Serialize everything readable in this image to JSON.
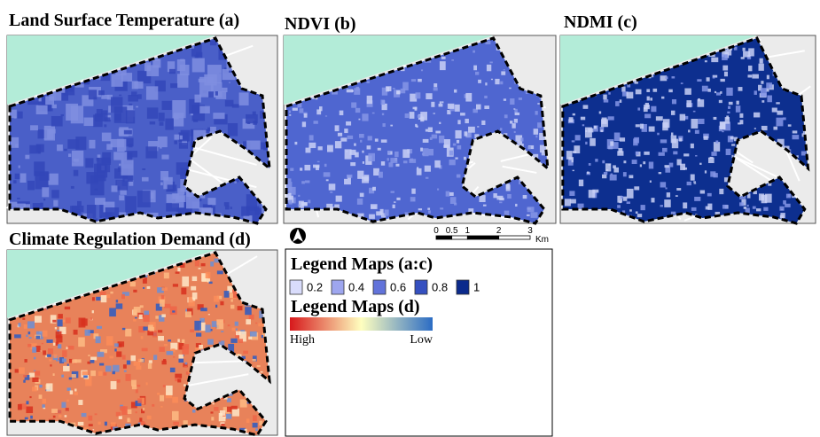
{
  "panels": [
    {
      "title": "Land Surface Temperature  (a)",
      "fill": "#4a5fc8"
    },
    {
      "title": "NDVI (b)",
      "fill": "#4f66d0"
    },
    {
      "title": "NDMI (c)",
      "fill": "#0d2f8f"
    },
    {
      "title": "Climate Regulation Demand (d)",
      "fill": "#e8825a"
    }
  ],
  "legend_ac": {
    "title": "Legend Maps (a:c)",
    "classes": [
      0.2,
      0.4,
      0.6,
      0.8,
      1
    ],
    "colors": [
      "#d9dcfb",
      "#9ea6ef",
      "#6273da",
      "#3550c0",
      "#0b2a8c"
    ]
  },
  "legend_d": {
    "title": "Legend Maps (d)",
    "high": "High",
    "low": "Low"
  },
  "scale_bar": {
    "ticks": [
      0,
      0.5,
      1,
      2,
      3
    ],
    "unit": "Km"
  }
}
